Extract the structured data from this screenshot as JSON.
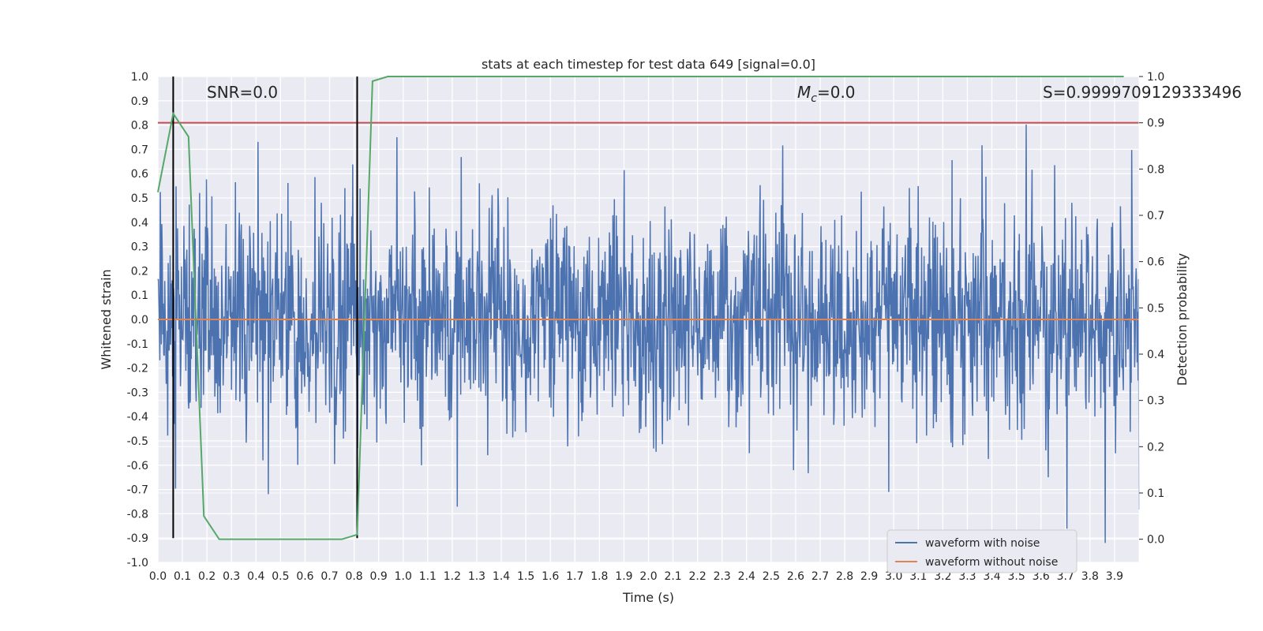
{
  "chart_data": {
    "type": "line",
    "title": "stats at each timestep for test data 649 [signal=0.0]",
    "xlabel": "Time (s)",
    "ylabel": "Whitened strain",
    "y2label": "Detection probability",
    "xlim": [
      0.0,
      4.0
    ],
    "ylim": [
      -1.0,
      1.0
    ],
    "y2lim": [
      -0.05,
      1.0
    ],
    "x_ticks": [
      "0.0",
      "0.1",
      "0.2",
      "0.3",
      "0.4",
      "0.5",
      "0.6",
      "0.7",
      "0.8",
      "0.9",
      "1.0",
      "1.1",
      "1.2",
      "1.3",
      "1.4",
      "1.5",
      "1.6",
      "1.7",
      "1.8",
      "1.9",
      "2.0",
      "2.1",
      "2.2",
      "2.3",
      "2.4",
      "2.5",
      "2.6",
      "2.7",
      "2.8",
      "2.9",
      "3.0",
      "3.1",
      "3.2",
      "3.3",
      "3.4",
      "3.5",
      "3.6",
      "3.7",
      "3.8",
      "3.9"
    ],
    "y_ticks": [
      "1.0",
      "0.9",
      "0.8",
      "0.7",
      "0.6",
      "0.5",
      "0.4",
      "0.3",
      "0.2",
      "0.1",
      "0.0",
      "-0.1",
      "-0.2",
      "-0.3",
      "-0.4",
      "-0.5",
      "-0.6",
      "-0.7",
      "-0.8",
      "-0.9",
      "-1.0"
    ],
    "y2_ticks": [
      "1.0",
      "0.9",
      "0.8",
      "0.7",
      "0.6",
      "0.5",
      "0.4",
      "0.3",
      "0.2",
      "0.1",
      "0.0"
    ],
    "annotations": {
      "snr": "SNR=0.0",
      "mc_symbol": "M",
      "mc_sub": "c",
      "mc_value": "=0.0",
      "s": "S=0.9999709129333496"
    },
    "series": [
      {
        "name": "waveform with noise",
        "color": "#4c72b0",
        "axis": "left",
        "noise_amplitude": 0.5,
        "num_points": 2000,
        "seed": 649
      },
      {
        "name": "waveform without noise",
        "color": "#dd8452",
        "axis": "left",
        "x": [
          0.0,
          4.0
        ],
        "y": [
          0.0,
          0.0
        ]
      },
      {
        "name": "detection probability",
        "color": "#55a868",
        "axis": "right",
        "x": [
          0.0,
          0.0625,
          0.125,
          0.1875,
          0.25,
          0.3125,
          0.375,
          0.4375,
          0.5,
          0.5625,
          0.625,
          0.6875,
          0.75,
          0.8125,
          0.875,
          0.9375,
          1.0,
          1.5,
          2.0,
          2.5,
          3.0,
          3.5,
          3.9375
        ],
        "y": [
          0.75,
          0.92,
          0.87,
          0.05,
          0.0,
          0.0,
          0.0,
          0.0,
          0.0,
          0.0,
          0.0,
          0.0,
          0.0,
          0.01,
          0.99,
          1.0,
          1.0,
          1.0,
          1.0,
          1.0,
          1.0,
          1.0,
          1.0
        ]
      }
    ],
    "threshold": {
      "axis": "right",
      "value": 0.9,
      "color": "#c44e52"
    },
    "vlines": [
      {
        "x": 0.0625,
        "y_range": [
          -0.9,
          1.0
        ],
        "color": "#000000"
      },
      {
        "x": 0.8125,
        "y_range": [
          -0.9,
          1.0
        ],
        "color": "#000000"
      }
    ],
    "legend": {
      "placement": "lower-right",
      "entries": [
        {
          "label": "waveform with noise",
          "color": "#4c72b0"
        },
        {
          "label": "waveform without noise",
          "color": "#dd8452"
        }
      ]
    }
  }
}
